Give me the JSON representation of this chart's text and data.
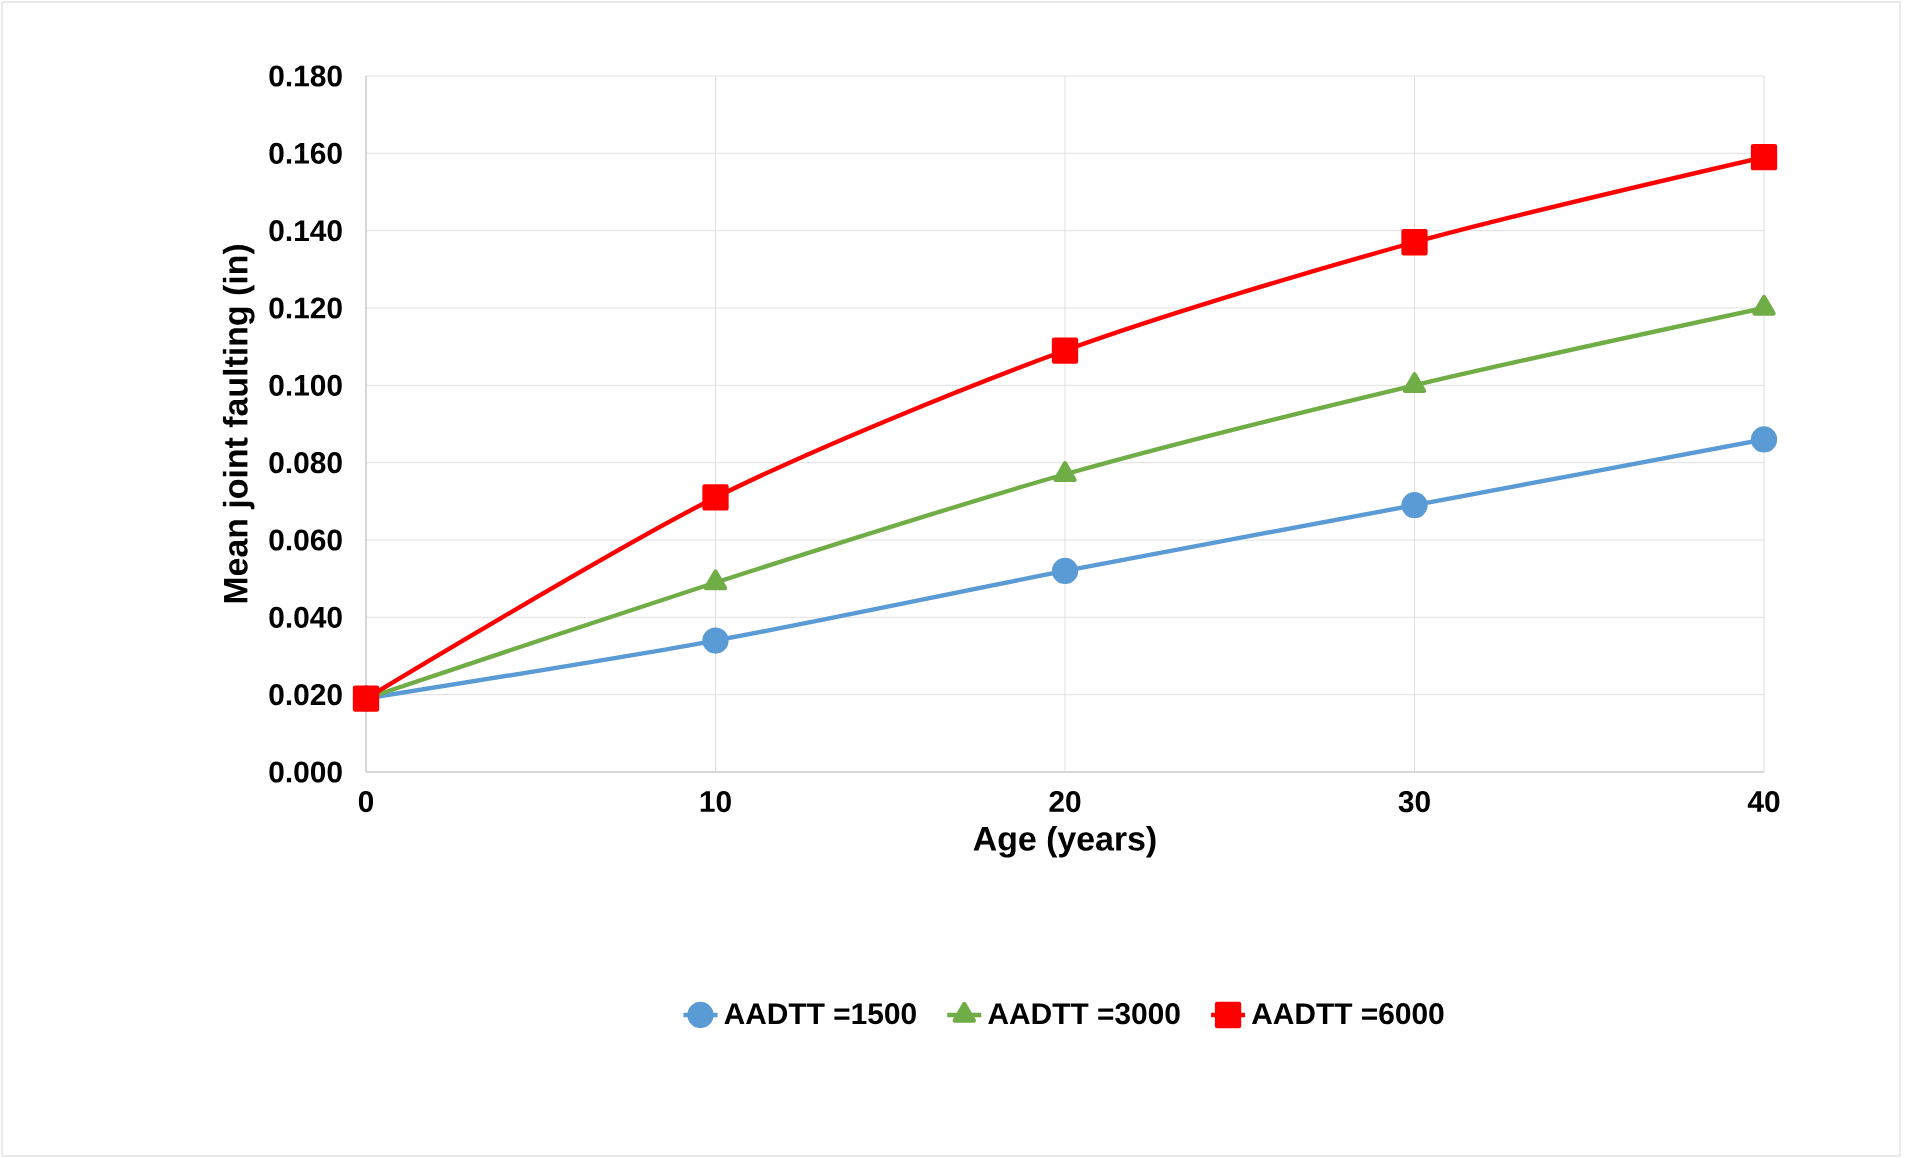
{
  "chart_data": {
    "type": "line",
    "xlabel": "Age (years)",
    "ylabel": "Mean joint faulting (in)",
    "x": [
      0,
      10,
      20,
      30,
      40
    ],
    "series": [
      {
        "name": "AADTT =1500",
        "color": "#5b9bd5",
        "marker": "circle",
        "values": [
          0.019,
          0.034,
          0.052,
          0.069,
          0.086
        ]
      },
      {
        "name": "AADTT =3000",
        "color": "#70ad47",
        "marker": "triangle",
        "values": [
          0.019,
          0.049,
          0.077,
          0.1,
          0.12
        ]
      },
      {
        "name": "AADTT =6000",
        "color": "#ff0000",
        "marker": "square",
        "values": [
          0.019,
          0.071,
          0.109,
          0.137,
          0.159
        ]
      }
    ],
    "xlim": [
      0,
      40
    ],
    "xticks": [
      0,
      10,
      20,
      30,
      40
    ],
    "ylim": [
      0,
      0.18
    ],
    "yticks": [
      {
        "value": 0,
        "label": "0.000"
      },
      {
        "value": 0.02,
        "label": "0.020"
      },
      {
        "value": 0.04,
        "label": "0.040"
      },
      {
        "value": 0.06,
        "label": "0.060"
      },
      {
        "value": 0.08,
        "label": "0.080"
      },
      {
        "value": 0.1,
        "label": "0.100"
      },
      {
        "value": 0.12,
        "label": "0.120"
      },
      {
        "value": 0.14,
        "label": "0.140"
      },
      {
        "value": 0.16,
        "label": "0.160"
      },
      {
        "value": 0.18,
        "label": "0.180"
      }
    ],
    "grid": true,
    "legend": "bottom",
    "line_style": "solid"
  }
}
